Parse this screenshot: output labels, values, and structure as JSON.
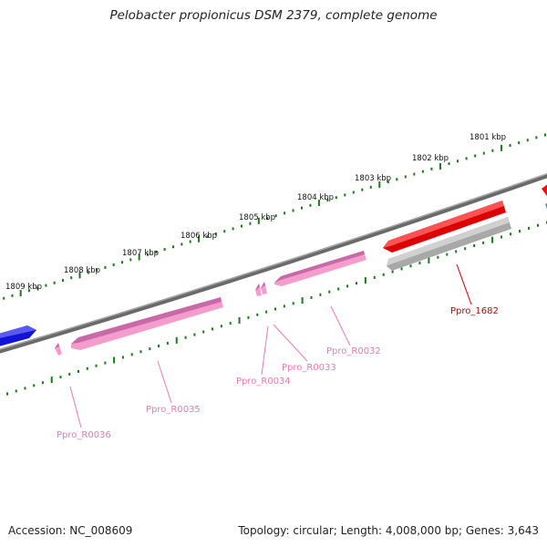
{
  "title": "Pelobacter propionicus DSM 2379, complete genome",
  "footer": {
    "accession": "Accession: NC_008609",
    "summary": "Topology: circular; Length: 4,008,000 bp; Genes: 3,643"
  },
  "colors": {
    "backbone": "#808080",
    "tick": "#1a7a1a",
    "rna": "#f49ccc",
    "rna_dark": "#c86aa8",
    "cds_red": "#ee1111",
    "cds_grey": "#b8b8b8",
    "cds_blue": "#1111dd",
    "label_pink": "#e87ab4",
    "label_red": "#cc0000"
  },
  "scale": {
    "unit": "kbp",
    "labels": [
      "1801 kbp",
      "1802 kbp",
      "1803 kbp",
      "1804 kbp",
      "1805 kbp",
      "1806 kbp",
      "1807 kbp",
      "1808 kbp",
      "1809 kbp"
    ]
  },
  "genes": [
    {
      "id": "Ppro_1682",
      "kind": "cds",
      "color": "red"
    },
    {
      "id": "Ppro_R0032",
      "kind": "rna",
      "color": "pink"
    },
    {
      "id": "Ppro_R0033",
      "kind": "rna",
      "color": "pink"
    },
    {
      "id": "Ppro_R0034",
      "kind": "rna",
      "color": "pink"
    },
    {
      "id": "Ppro_R0035",
      "kind": "rna",
      "color": "pink"
    },
    {
      "id": "Ppro_R0036",
      "kind": "rna",
      "color": "pink"
    }
  ]
}
